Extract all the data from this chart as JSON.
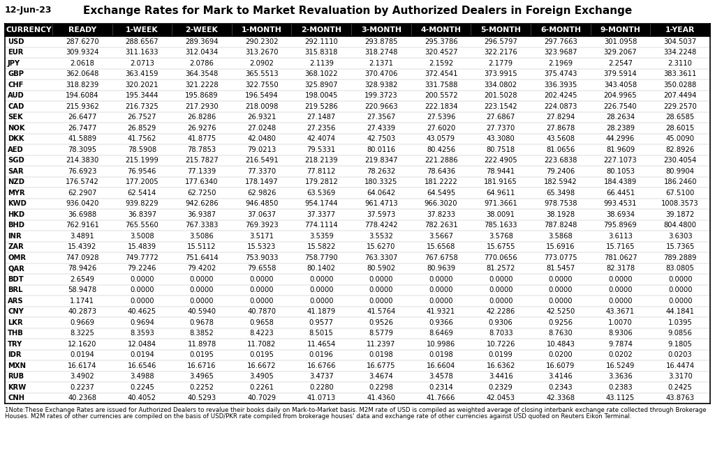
{
  "title": "Exchange Rates for Mark to Market Revaluation by Authorized Dealers in Foreign Exchange",
  "date": "12-Jun-23",
  "columns": [
    "CURRENCY",
    "READY",
    "1-WEEK",
    "2-WEEK",
    "1-MONTH",
    "2-MONTH",
    "3-MONTH",
    "4-MONTH",
    "5-MONTH",
    "6-MONTH",
    "9-MONTH",
    "1-YEAR"
  ],
  "rows": [
    [
      "USD",
      "287.6270",
      "288.6567",
      "289.3694",
      "290.2302",
      "292.1110",
      "293.8785",
      "295.3786",
      "296.5797",
      "297.7663",
      "301.0958",
      "304.5037"
    ],
    [
      "EUR",
      "309.9324",
      "311.1633",
      "312.0434",
      "313.2670",
      "315.8318",
      "318.2748",
      "320.4527",
      "322.2176",
      "323.9687",
      "329.2067",
      "334.2248"
    ],
    [
      "JPY",
      "2.0618",
      "2.0713",
      "2.0786",
      "2.0902",
      "2.1139",
      "2.1371",
      "2.1592",
      "2.1779",
      "2.1969",
      "2.2547",
      "2.3110"
    ],
    [
      "GBP",
      "362.0648",
      "363.4159",
      "364.3548",
      "365.5513",
      "368.1022",
      "370.4706",
      "372.4541",
      "373.9915",
      "375.4743",
      "379.5914",
      "383.3611"
    ],
    [
      "CHF",
      "318.8239",
      "320.2021",
      "321.2228",
      "322.7550",
      "325.8907",
      "328.9382",
      "331.7588",
      "334.0802",
      "336.3935",
      "343.4058",
      "350.0288"
    ],
    [
      "AUD",
      "194.6084",
      "195.3444",
      "195.8689",
      "196.5494",
      "198.0045",
      "199.3723",
      "200.5572",
      "201.5028",
      "202.4245",
      "204.9965",
      "207.4494"
    ],
    [
      "CAD",
      "215.9362",
      "216.7325",
      "217.2930",
      "218.0098",
      "219.5286",
      "220.9663",
      "222.1834",
      "223.1542",
      "224.0873",
      "226.7540",
      "229.2570"
    ],
    [
      "SEK",
      "26.6477",
      "26.7527",
      "26.8286",
      "26.9321",
      "27.1487",
      "27.3567",
      "27.5396",
      "27.6867",
      "27.8294",
      "28.2634",
      "28.6585"
    ],
    [
      "NOK",
      "26.7477",
      "26.8529",
      "26.9276",
      "27.0248",
      "27.2356",
      "27.4339",
      "27.6020",
      "27.7370",
      "27.8678",
      "28.2389",
      "28.6015"
    ],
    [
      "DKK",
      "41.5889",
      "41.7562",
      "41.8775",
      "42.0480",
      "42.4074",
      "42.7503",
      "43.0579",
      "43.3080",
      "43.5608",
      "44.2996",
      "45.0090"
    ],
    [
      "AED",
      "78.3095",
      "78.5908",
      "78.7853",
      "79.0213",
      "79.5331",
      "80.0116",
      "80.4256",
      "80.7518",
      "81.0656",
      "81.9609",
      "82.8926"
    ],
    [
      "SGD",
      "214.3830",
      "215.1999",
      "215.7827",
      "216.5491",
      "218.2139",
      "219.8347",
      "221.2886",
      "222.4905",
      "223.6838",
      "227.1073",
      "230.4054"
    ],
    [
      "SAR",
      "76.6923",
      "76.9546",
      "77.1339",
      "77.3370",
      "77.8112",
      "78.2632",
      "78.6436",
      "78.9441",
      "79.2406",
      "80.1053",
      "80.9904"
    ],
    [
      "NZD",
      "176.5742",
      "177.2005",
      "177.6340",
      "178.1497",
      "179.2812",
      "180.3325",
      "181.2222",
      "181.9165",
      "182.5942",
      "184.4389",
      "186.2460"
    ],
    [
      "MYR",
      "62.2907",
      "62.5414",
      "62.7250",
      "62.9826",
      "63.5369",
      "64.0642",
      "64.5495",
      "64.9611",
      "65.3498",
      "66.4451",
      "67.5100"
    ],
    [
      "KWD",
      "936.0420",
      "939.8229",
      "942.6286",
      "946.4850",
      "954.1744",
      "961.4713",
      "966.3020",
      "971.3661",
      "978.7538",
      "993.4531",
      "1008.3573"
    ],
    [
      "HKD",
      "36.6988",
      "36.8397",
      "36.9387",
      "37.0637",
      "37.3377",
      "37.5973",
      "37.8233",
      "38.0091",
      "38.1928",
      "38.6934",
      "39.1872"
    ],
    [
      "BHD",
      "762.9161",
      "765.5560",
      "767.3383",
      "769.3923",
      "774.1114",
      "778.4242",
      "782.2631",
      "785.1633",
      "787.8248",
      "795.8969",
      "804.4800"
    ],
    [
      "INR",
      "3.4891",
      "3.5008",
      "3.5086",
      "3.5171",
      "3.5359",
      "3.5532",
      "3.5667",
      "3.5768",
      "3.5868",
      "3.6113",
      "3.6303"
    ],
    [
      "ZAR",
      "15.4392",
      "15.4839",
      "15.5112",
      "15.5323",
      "15.5822",
      "15.6270",
      "15.6568",
      "15.6755",
      "15.6916",
      "15.7165",
      "15.7365"
    ],
    [
      "OMR",
      "747.0928",
      "749.7772",
      "751.6414",
      "753.9033",
      "758.7790",
      "763.3307",
      "767.6758",
      "770.0656",
      "773.0775",
      "781.0627",
      "789.2889"
    ],
    [
      "QAR",
      "78.9426",
      "79.2246",
      "79.4202",
      "79.6558",
      "80.1402",
      "80.5902",
      "80.9639",
      "81.2572",
      "81.5457",
      "82.3178",
      "83.0805"
    ],
    [
      "BDT",
      "2.6549",
      "0.0000",
      "0.0000",
      "0.0000",
      "0.0000",
      "0.0000",
      "0.0000",
      "0.0000",
      "0.0000",
      "0.0000",
      "0.0000"
    ],
    [
      "BRL",
      "58.9478",
      "0.0000",
      "0.0000",
      "0.0000",
      "0.0000",
      "0.0000",
      "0.0000",
      "0.0000",
      "0.0000",
      "0.0000",
      "0.0000"
    ],
    [
      "ARS",
      "1.1741",
      "0.0000",
      "0.0000",
      "0.0000",
      "0.0000",
      "0.0000",
      "0.0000",
      "0.0000",
      "0.0000",
      "0.0000",
      "0.0000"
    ],
    [
      "CNY",
      "40.2873",
      "40.4625",
      "40.5940",
      "40.7870",
      "41.1879",
      "41.5764",
      "41.9321",
      "42.2286",
      "42.5250",
      "43.3671",
      "44.1841"
    ],
    [
      "LKR",
      "0.9669",
      "0.9694",
      "0.9678",
      "0.9658",
      "0.9577",
      "0.9526",
      "0.9366",
      "0.9306",
      "0.9256",
      "1.0070",
      "1.0395"
    ],
    [
      "THB",
      "8.3225",
      "8.3593",
      "8.3852",
      "8.4223",
      "8.5015",
      "8.5779",
      "8.6469",
      "8.7033",
      "8.7630",
      "8.9306",
      "9.0856"
    ],
    [
      "TRY",
      "12.1620",
      "12.0484",
      "11.8978",
      "11.7082",
      "11.4654",
      "11.2397",
      "10.9986",
      "10.7226",
      "10.4843",
      "9.7874",
      "9.1805"
    ],
    [
      "IDR",
      "0.0194",
      "0.0194",
      "0.0195",
      "0.0195",
      "0.0196",
      "0.0198",
      "0.0198",
      "0.0199",
      "0.0200",
      "0.0202",
      "0.0203"
    ],
    [
      "MXN",
      "16.6174",
      "16.6546",
      "16.6716",
      "16.6672",
      "16.6766",
      "16.6775",
      "16.6604",
      "16.6362",
      "16.6079",
      "16.5249",
      "16.4474"
    ],
    [
      "RUB",
      "3.4902",
      "3.4988",
      "3.4965",
      "3.4905",
      "3.4737",
      "3.4674",
      "3.4578",
      "3.4416",
      "3.4146",
      "3.3636",
      "3.3170"
    ],
    [
      "KRW",
      "0.2237",
      "0.2245",
      "0.2252",
      "0.2261",
      "0.2280",
      "0.2298",
      "0.2314",
      "0.2329",
      "0.2343",
      "0.2383",
      "0.2425"
    ],
    [
      "CNH",
      "40.2368",
      "40.4052",
      "40.5293",
      "40.7029",
      "41.0713",
      "41.4360",
      "41.7666",
      "42.0453",
      "42.3368",
      "43.1125",
      "43.8763"
    ]
  ],
  "header_bg": "#000000",
  "header_fg": "#ffffff",
  "footnote_line1": "1Note:These Exchange Rates are issued for Authorized Dealers to revalue their books daily on Mark-to-Market basis. M2M rate of USD is compiled as weighted average of closing interbank exchange rate collected through Brokerage",
  "footnote_line2": "Houses. M2M rates of other currencies are compiled on the basis of USD/PKR rate compiled from brokerage houses' data and exchange rate of other currencies against USD quoted on Reuters Eikon Terminal.",
  "title_fontsize": 11,
  "date_fontsize": 9,
  "header_fontsize": 7.8,
  "data_fontsize": 7.2,
  "footnote_fontsize": 6.2
}
